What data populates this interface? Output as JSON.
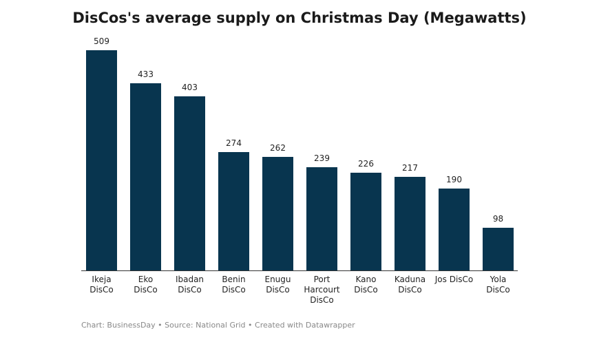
{
  "chart_data": {
    "type": "bar",
    "title": "DisCos's average supply on Christmas Day (Megawatts)",
    "categories": [
      "Ikeja DisCo",
      "Eko DisCo",
      "Ibadan DisCo",
      "Benin DisCo",
      "Enugu DisCo",
      "Port Harcourt DisCo",
      "Kano DisCo",
      "Kaduna DisCo",
      "Jos DisCo",
      "Yola DisCo"
    ],
    "values": [
      509,
      433,
      403,
      274,
      262,
      239,
      226,
      217,
      190,
      98
    ],
    "color": "#08354f",
    "source": "Chart: BusinessDay • Source: National Grid • Created with Datawrapper"
  }
}
